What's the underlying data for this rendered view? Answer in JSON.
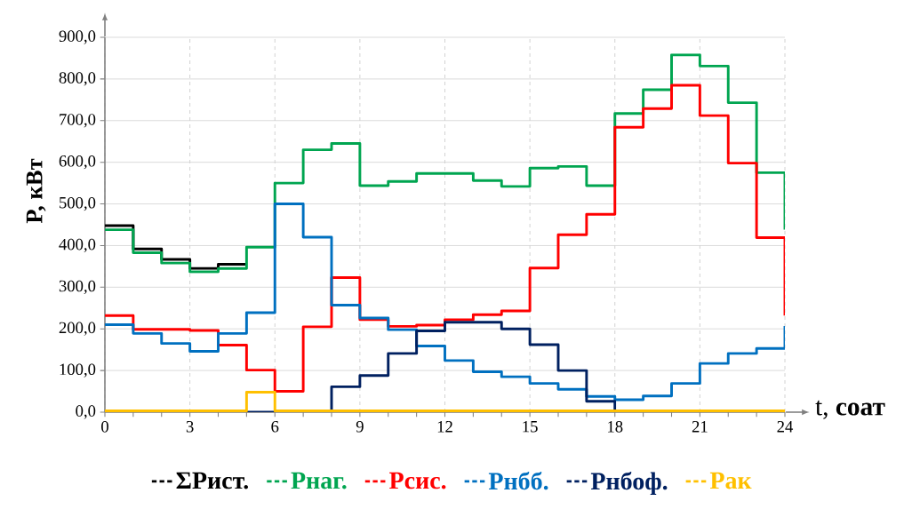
{
  "chart_data": {
    "type": "step",
    "xlabel": "t, **соат**",
    "ylabel": "P, кВт",
    "x": [
      0,
      1,
      2,
      3,
      4,
      5,
      6,
      7,
      8,
      9,
      10,
      11,
      12,
      13,
      14,
      15,
      16,
      17,
      18,
      19,
      20,
      21,
      22,
      23,
      24
    ],
    "xlim": [
      0,
      24
    ],
    "xticks": [
      0,
      3,
      6,
      9,
      12,
      15,
      18,
      21,
      24
    ],
    "ylim": [
      0,
      900
    ],
    "yticks": [
      {
        "value": 0,
        "label": "0,0"
      },
      {
        "value": 100,
        "label": "100,0"
      },
      {
        "value": 200,
        "label": "200,0"
      },
      {
        "value": 300,
        "label": "300,0"
      },
      {
        "value": 400,
        "label": "400,0"
      },
      {
        "value": 500,
        "label": "500,0"
      },
      {
        "value": 600,
        "label": "600,0"
      },
      {
        "value": 700,
        "label": "700,0"
      },
      {
        "value": 800,
        "label": "800,0"
      },
      {
        "value": 900,
        "label": "900,0"
      }
    ],
    "grid": true,
    "legend": "bottom",
    "marker": "none",
    "line_style": "solid",
    "series": [
      {
        "name": "ΣРист.",
        "color": "#000000",
        "values": [
          448,
          392,
          367,
          345,
          355,
          355,
          null,
          null,
          null,
          null,
          null,
          null,
          null,
          null,
          null,
          null,
          null,
          null,
          null,
          null,
          null,
          null,
          null,
          null,
          null
        ]
      },
      {
        "name": "Рнаг.",
        "color": "#00a550",
        "values": [
          438,
          383,
          358,
          337,
          345,
          396,
          550,
          630,
          645,
          544,
          554,
          573,
          573,
          556,
          542,
          586,
          590,
          544,
          717,
          774,
          858,
          831,
          743,
          575,
          438
        ]
      },
      {
        "name": "Рсис.",
        "color": "#ff0000",
        "values": [
          232,
          199,
          199,
          196,
          161,
          101,
          50,
          205,
          323,
          222,
          206,
          209,
          222,
          234,
          243,
          346,
          426,
          475,
          684,
          729,
          785,
          712,
          598,
          419,
          232
        ]
      },
      {
        "name": "Рнбб.",
        "color": "#0070c0",
        "values": [
          210,
          189,
          165,
          146,
          189,
          239,
          500,
          420,
          257,
          226,
          198,
          159,
          124,
          97,
          85,
          69,
          55,
          38,
          30,
          39,
          69,
          117,
          141,
          153,
          207
        ]
      },
      {
        "name": "Рнбоф.",
        "color": "#002060",
        "values": [
          null,
          null,
          null,
          null,
          null,
          0,
          0,
          0,
          61,
          88,
          141,
          195,
          216,
          216,
          200,
          162,
          100,
          26,
          0,
          null,
          null,
          null,
          null,
          null,
          null
        ]
      },
      {
        "name": "Рак",
        "color": "#ffc000",
        "values": [
          3,
          3,
          3,
          3,
          3,
          48,
          3,
          3,
          3,
          3,
          3,
          3,
          3,
          3,
          3,
          3,
          3,
          3,
          3,
          3,
          3,
          3,
          3,
          3,
          3
        ]
      }
    ]
  }
}
